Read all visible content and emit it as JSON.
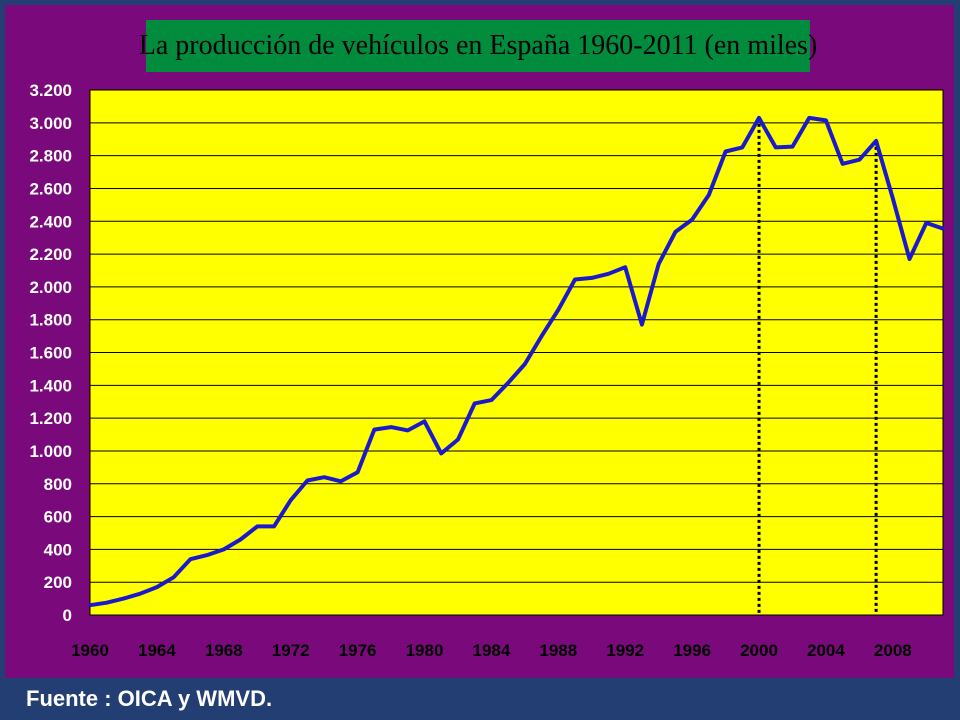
{
  "colors": {
    "page_background": "#233e73",
    "frame_background": "#7a0a7c",
    "title_background": "#008c3c",
    "plot_background": "#ffff00",
    "line": "#1a1acc",
    "gridline": "#000000"
  },
  "source_note": "Fuente : OICA y WMVD.",
  "chart_data": {
    "type": "line",
    "title": "La producción de vehículos en España 1960-2011 (en miles)",
    "xlabel": "",
    "ylabel": "",
    "xlim": [
      1960,
      2011
    ],
    "ylim": [
      0,
      3200
    ],
    "y_ticks": [
      0,
      200,
      400,
      600,
      800,
      1000,
      1200,
      1400,
      1600,
      1800,
      2000,
      2200,
      2400,
      2600,
      2800,
      3000,
      3200
    ],
    "y_tick_labels": [
      "0",
      "200",
      "400",
      "600",
      "800",
      "1.000",
      "1.200",
      "1.400",
      "1.600",
      "1.800",
      "2.000",
      "2.200",
      "2.400",
      "2.600",
      "2.800",
      "3.000",
      "3.200"
    ],
    "x_tick_labels": [
      "1960",
      "1964",
      "1968",
      "1972",
      "1976",
      "1980",
      "1984",
      "1988",
      "1992",
      "1996",
      "2000",
      "2004",
      "2008"
    ],
    "grid": "horizontal",
    "legend": "none",
    "reference_lines_x": [
      2000,
      2007
    ],
    "series": [
      {
        "x": [
          1960,
          1961,
          1962,
          1963,
          1964,
          1965,
          1966,
          1967,
          1968,
          1969,
          1970,
          1971,
          1972,
          1973,
          1974,
          1975,
          1976,
          1977,
          1978,
          1979,
          1980,
          1981,
          1982,
          1983,
          1984,
          1985,
          1986,
          1987,
          1988,
          1989,
          1990,
          1991,
          1992,
          1993,
          1994,
          1995,
          1996,
          1997,
          1998,
          1999,
          2000,
          2001,
          2002,
          2003,
          2004,
          2005,
          2006,
          2007,
          2008,
          2009,
          2010,
          2011
        ],
        "values": [
          60,
          75,
          100,
          130,
          170,
          230,
          340,
          365,
          400,
          460,
          540,
          540,
          700,
          820,
          840,
          815,
          870,
          1130,
          1145,
          1125,
          1180,
          985,
          1070,
          1290,
          1310,
          1415,
          1530,
          1700,
          1860,
          2045,
          2055,
          2080,
          2120,
          1770,
          2140,
          2335,
          2410,
          2560,
          2825,
          2850,
          3030,
          2850,
          2855,
          3030,
          3015,
          2750,
          2775,
          2890,
          2540,
          2170,
          2390,
          2355
        ]
      }
    ]
  }
}
